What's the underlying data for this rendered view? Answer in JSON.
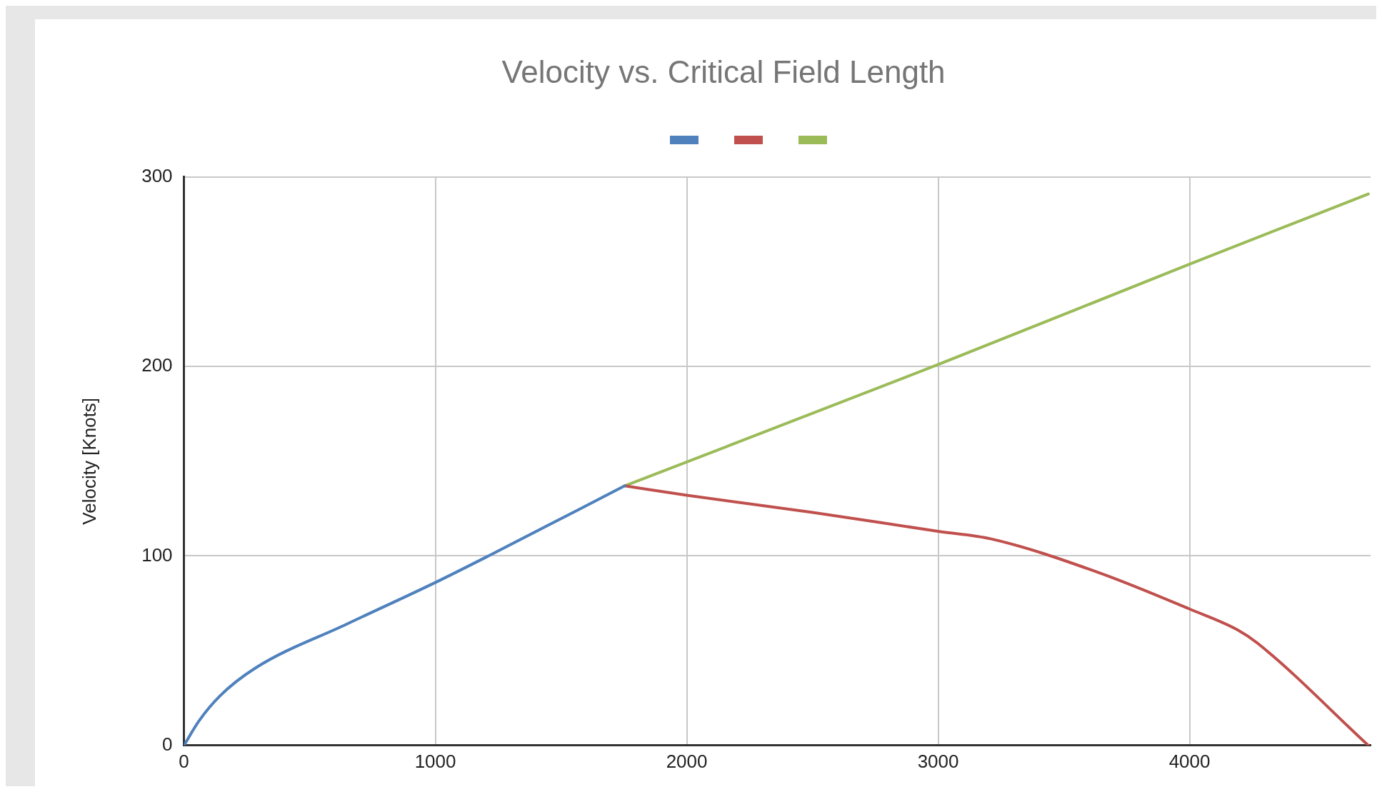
{
  "chart_data": {
    "type": "line",
    "title": "Velocity vs. Critical Field Length",
    "ylabel": "Velocity [Knots]",
    "xlim": [
      0,
      4720
    ],
    "xticks": [
      0,
      1000,
      2000,
      3000,
      4000
    ],
    "ylim": [
      0,
      300
    ],
    "yticks": [
      0,
      100,
      200,
      300
    ],
    "grid": true,
    "marker": "none",
    "line_style": "solid",
    "series": [
      {
        "color": "#4f81bd",
        "x": [
          0,
          60,
          142,
          286,
          647,
          1000,
          1211,
          1753
        ],
        "values": [
          0,
          13,
          26,
          41,
          64,
          86,
          100,
          137
        ]
      },
      {
        "color": "#c0504d",
        "x": [
          1753,
          2000,
          2500,
          3000,
          3211,
          3643,
          4000,
          4191,
          4270,
          4711
        ],
        "values": [
          137,
          132,
          123,
          113,
          109,
          91,
          72,
          61,
          54,
          0
        ]
      },
      {
        "color": "#9bbb59",
        "x": [
          1753,
          3000,
          4000,
          4711
        ],
        "values": [
          137,
          201,
          254,
          291
        ]
      }
    ]
  }
}
